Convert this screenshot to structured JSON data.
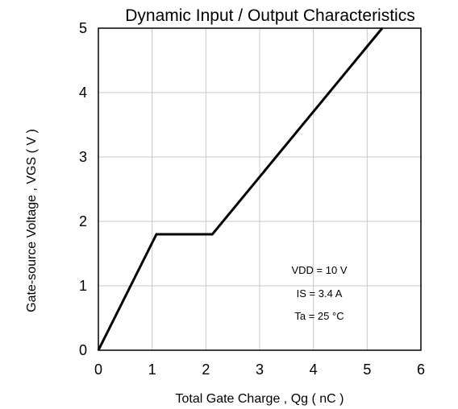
{
  "chart_data": {
    "type": "line",
    "title": "Dynamic Input / Output Characteristics",
    "xlabel": "Total Gate Charge , Qg ( nC )",
    "ylabel": "Gate-source Voltage , VGS ( V )",
    "xlim": [
      0,
      6
    ],
    "ylim": [
      0,
      5
    ],
    "xticks": [
      "0",
      "1",
      "2",
      "3",
      "4",
      "5",
      "6"
    ],
    "yticks": [
      "0",
      "1",
      "2",
      "3",
      "4",
      "5"
    ],
    "grid": true,
    "series": [
      {
        "x": [
          0,
          1.08,
          2.12,
          5.28
        ],
        "y": [
          0,
          1.8,
          1.8,
          5.0
        ],
        "color": "#000000"
      }
    ],
    "annotations": [
      "VDD = 10 V",
      "IS = 3.4 A",
      "Ta = 25 °C"
    ]
  }
}
